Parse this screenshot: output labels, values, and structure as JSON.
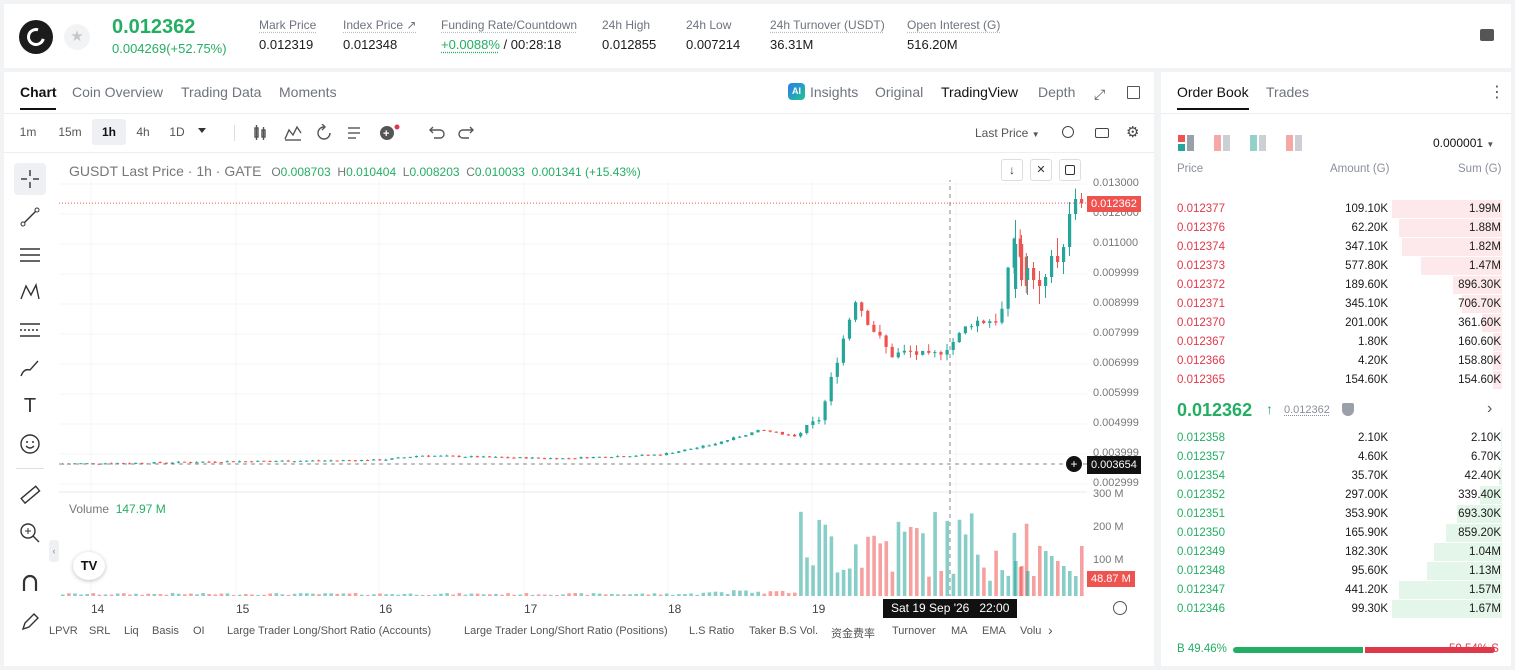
{
  "header": {
    "price": "0.012362",
    "change": "0.004269(+52.75%)",
    "stats": [
      {
        "label": "Mark Price",
        "value": "0.012319"
      },
      {
        "label": "Index Price ↗",
        "value": "0.012348"
      },
      {
        "label": "Funding Rate/Countdown",
        "value_green": "+0.0088%",
        "value": "/ 00:28:18"
      },
      {
        "label": "24h High",
        "value": "0.012855"
      },
      {
        "label": "24h Low",
        "value": "0.007214"
      },
      {
        "label": "24h Turnover (USDT)",
        "value": "36.31M"
      },
      {
        "label": "Open Interest (G)",
        "value": "516.20M"
      }
    ]
  },
  "chart_tabs": [
    "Chart",
    "Coin Overview",
    "Trading Data",
    "Moments"
  ],
  "chart_right_tabs": [
    "Insights",
    "Original",
    "TradingView",
    "Depth"
  ],
  "timeframes": [
    "1m",
    "15m",
    "1h",
    "4h",
    "1D"
  ],
  "last_price_select": "Last Price",
  "legend": {
    "symbol": "GUSDT Last Price · 1h · GATE",
    "o_label": "O",
    "o": "0.008703",
    "h_label": "H",
    "h": "0.010404",
    "l_label": "L",
    "l": "0.008203",
    "c_label": "C",
    "c": "0.010033",
    "chg": "0.001341 (+15.43%)"
  },
  "volume_legend": {
    "label": "Volume",
    "value": "147.97 M"
  },
  "price_axis": [
    "0.013000",
    "0.012000",
    "0.011000",
    "0.009999",
    "0.008999",
    "0.007999",
    "0.006999",
    "0.005999",
    "0.004999",
    "0.003999",
    "0.002999"
  ],
  "volume_axis": [
    "300 M",
    "200 M",
    "100 M"
  ],
  "current_price_tag": "0.012362",
  "crosshair_price_tag": "0.003654",
  "volume_tag": "48.87 M",
  "time_axis": [
    "14",
    "15",
    "16",
    "17",
    "18",
    "19"
  ],
  "crosshair_time": "Sat 19 Sep '26   22:00",
  "bottom_tabs": [
    "LPVR",
    "SRL",
    "Liq",
    "Basis",
    "OI",
    "Large Trader Long/Short Ratio (Accounts)",
    "Large Trader Long/Short Ratio (Positions)",
    "L.S Ratio",
    "Taker B.S Vol.",
    "资金费率",
    "Turnover",
    "MA",
    "EMA",
    "Volu"
  ],
  "orderbook": {
    "tabs": [
      "Order Book",
      "Trades"
    ],
    "precision": "0.000001",
    "headers": [
      "Price",
      "Amount (G)",
      "Sum (G)"
    ],
    "asks": [
      {
        "price": "0.012377",
        "amount": "109.10K",
        "sum": "1.99M",
        "depth": 1.0
      },
      {
        "price": "0.012376",
        "amount": "62.20K",
        "sum": "1.88M",
        "depth": 0.94
      },
      {
        "price": "0.012374",
        "amount": "347.10K",
        "sum": "1.82M",
        "depth": 0.91
      },
      {
        "price": "0.012373",
        "amount": "577.80K",
        "sum": "1.47M",
        "depth": 0.74
      },
      {
        "price": "0.012372",
        "amount": "189.60K",
        "sum": "896.30K",
        "depth": 0.45
      },
      {
        "price": "0.012371",
        "amount": "345.10K",
        "sum": "706.70K",
        "depth": 0.36
      },
      {
        "price": "0.012370",
        "amount": "201.00K",
        "sum": "361.60K",
        "depth": 0.18
      },
      {
        "price": "0.012367",
        "amount": "1.80K",
        "sum": "160.60K",
        "depth": 0.08
      },
      {
        "price": "0.012366",
        "amount": "4.20K",
        "sum": "158.80K",
        "depth": 0.08
      },
      {
        "price": "0.012365",
        "amount": "154.60K",
        "sum": "154.60K",
        "depth": 0.08
      }
    ],
    "mid_price": "0.012362",
    "mid_mark": "0.012362",
    "bids": [
      {
        "price": "0.012358",
        "amount": "2.10K",
        "sum": "2.10K",
        "depth": 0.01
      },
      {
        "price": "0.012357",
        "amount": "4.60K",
        "sum": "6.70K",
        "depth": 0.01
      },
      {
        "price": "0.012354",
        "amount": "35.70K",
        "sum": "42.40K",
        "depth": 0.03
      },
      {
        "price": "0.012352",
        "amount": "297.00K",
        "sum": "339.40K",
        "depth": 0.2
      },
      {
        "price": "0.012351",
        "amount": "353.90K",
        "sum": "693.30K",
        "depth": 0.41
      },
      {
        "price": "0.012350",
        "amount": "165.90K",
        "sum": "859.20K",
        "depth": 0.51
      },
      {
        "price": "0.012349",
        "amount": "182.30K",
        "sum": "1.04M",
        "depth": 0.62
      },
      {
        "price": "0.012348",
        "amount": "95.60K",
        "sum": "1.13M",
        "depth": 0.68
      },
      {
        "price": "0.012347",
        "amount": "441.20K",
        "sum": "1.57M",
        "depth": 0.94
      },
      {
        "price": "0.012346",
        "amount": "99.30K",
        "sum": "1.67M",
        "depth": 1.0
      }
    ],
    "buy_ratio": "B 49.46%",
    "sell_ratio": "50.54% S",
    "buy_fraction": 0.4946
  },
  "colors": {
    "up": "#26a69a",
    "down": "#ef5350",
    "green_text": "#24ae64",
    "red_text": "#e0384b"
  }
}
